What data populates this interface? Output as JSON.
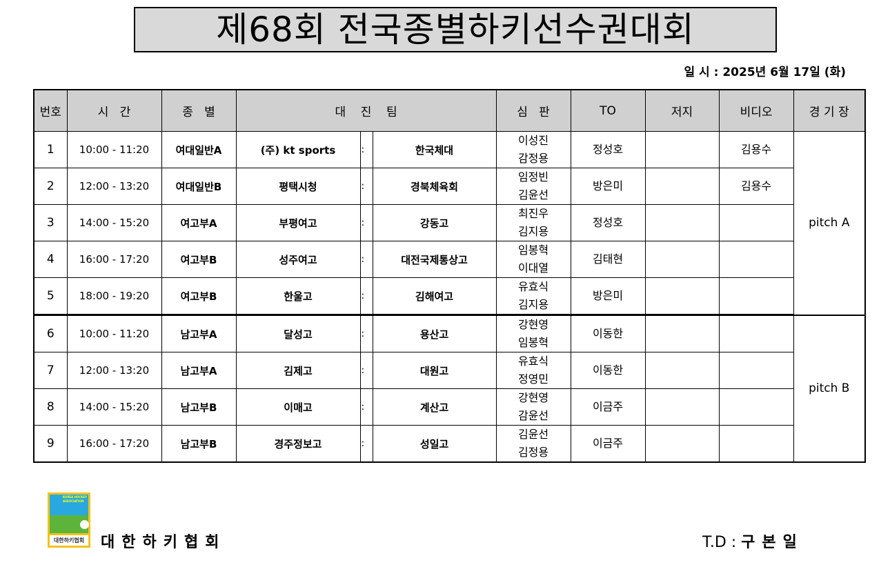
{
  "title": "제68회 전국종별하키선수권대회",
  "date": "일 시 : 2025년 6월 17일 (화)",
  "headers": {
    "no": "번호",
    "time": "시   간",
    "category": "종   별",
    "teams": "대    진    팀",
    "referee": "심   판",
    "to": "TO",
    "judge": "저지",
    "video": "비디오",
    "venue": "경 기 장"
  },
  "rows": [
    {
      "no": "1",
      "time": "10:00 - 11:20",
      "category": "여대일반A",
      "team1": "(주) kt sports",
      "sep": ":",
      "team2": "한국체대",
      "ref1": "이성진",
      "ref2": "감정용",
      "to": "정성호",
      "judge": "",
      "video": "김용수"
    },
    {
      "no": "2",
      "time": "12:00 - 13:20",
      "category": "여대일반B",
      "team1": "평택시청",
      "sep": ":",
      "team2": "경북체육회",
      "ref1": "임정빈",
      "ref2": "김윤선",
      "to": "방은미",
      "judge": "",
      "video": "김용수"
    },
    {
      "no": "3",
      "time": "14:00 - 15:20",
      "category": "여고부A",
      "team1": "부평여고",
      "sep": ":",
      "team2": "강동고",
      "ref1": "최진우",
      "ref2": "김지용",
      "to": "정성호",
      "judge": "",
      "video": ""
    },
    {
      "no": "4",
      "time": "16:00 - 17:20",
      "category": "여고부B",
      "team1": "성주여고",
      "sep": ":",
      "team2": "대전국제통상고",
      "ref1": "임봉혁",
      "ref2": "이대열",
      "to": "김태현",
      "judge": "",
      "video": ""
    },
    {
      "no": "5",
      "time": "18:00 - 19:20",
      "category": "여고부B",
      "team1": "한울고",
      "sep": ":",
      "team2": "김해여고",
      "ref1": "유효식",
      "ref2": "김지용",
      "to": "방은미",
      "judge": "",
      "video": ""
    },
    {
      "no": "6",
      "time": "10:00 - 11:20",
      "category": "남고부A",
      "team1": "달성고",
      "sep": ":",
      "team2": "용산고",
      "ref1": "강현영",
      "ref2": "임봉혁",
      "to": "이동한",
      "judge": "",
      "video": ""
    },
    {
      "no": "7",
      "time": "12:00 - 13:20",
      "category": "남고부A",
      "team1": "김제고",
      "sep": ":",
      "team2": "대원고",
      "ref1": "유효식",
      "ref2": "정영민",
      "to": "이동한",
      "judge": "",
      "video": ""
    },
    {
      "no": "8",
      "time": "14:00 - 15:20",
      "category": "남고부B",
      "team1": "이매고",
      "sep": ":",
      "team2": "계산고",
      "ref1": "강현영",
      "ref2": "감윤선",
      "to": "이금주",
      "judge": "",
      "video": ""
    },
    {
      "no": "9",
      "time": "16:00 - 17:20",
      "category": "남고부B",
      "team1": "경주정보고",
      "sep": ":",
      "team2": "성일고",
      "ref1": "김윤선",
      "ref2": "김정용",
      "to": "이금주",
      "judge": "",
      "video": ""
    }
  ],
  "venues": [
    "pitch A",
    "pitch B"
  ],
  "footer": {
    "logo_text": "KOREA HOCKEY ASSOCIATION",
    "logo_label": "대한하키협회",
    "org": "대한하키협회",
    "td_label": "T.D :",
    "td_name": "구본일"
  }
}
